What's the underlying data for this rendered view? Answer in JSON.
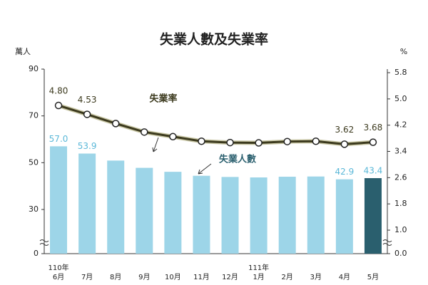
{
  "chart_data": {
    "type": "bar_line",
    "title": "失業人數及失業率",
    "y_label": "萬人",
    "y2_label": "%",
    "annotations": [
      "失業率",
      "失業人數"
    ],
    "categories": [
      "110年\n6月",
      "7月",
      "8月",
      "9月",
      "10月",
      "11月",
      "12月",
      "111年\n1月",
      "2月",
      "3月",
      "4月",
      "5月"
    ],
    "ylim": [
      0,
      90
    ],
    "yticks": [
      0,
      30,
      50,
      70,
      90
    ],
    "y2lim": [
      0,
      5.8
    ],
    "y2ticks": [
      {
        "value": 0,
        "label": "0.0"
      },
      {
        "value": 1,
        "label": "1.0"
      },
      1.8,
      2.6,
      3.4,
      4.2,
      {
        "value": 5,
        "label": "5.0"
      },
      5.8
    ],
    "series": [
      {
        "name": "失業人數",
        "type": "bar",
        "color": "#9dd5e8",
        "highlight_color": "#2a5f6e",
        "label_color": "#5bb8d8",
        "values": [
          57.0,
          53.9,
          50.9,
          47.8,
          46.1,
          44.4,
          43.9,
          43.7,
          44.0,
          44.1,
          42.9,
          43.4
        ],
        "value_labels": [
          "57.0",
          "53.9",
          null,
          null,
          null,
          null,
          null,
          null,
          null,
          null,
          "42.9",
          "43.4"
        ]
      },
      {
        "name": "失業率",
        "type": "line",
        "axis": "y2",
        "color": "#3c3a1e",
        "label_color": "#3c3a1e",
        "values": [
          4.8,
          4.53,
          4.25,
          3.99,
          3.85,
          3.71,
          3.67,
          3.66,
          3.7,
          3.71,
          3.62,
          3.68
        ],
        "value_labels": [
          "4.80",
          "4.53",
          null,
          null,
          null,
          null,
          null,
          null,
          null,
          null,
          "3.62",
          "3.68"
        ]
      }
    ]
  }
}
